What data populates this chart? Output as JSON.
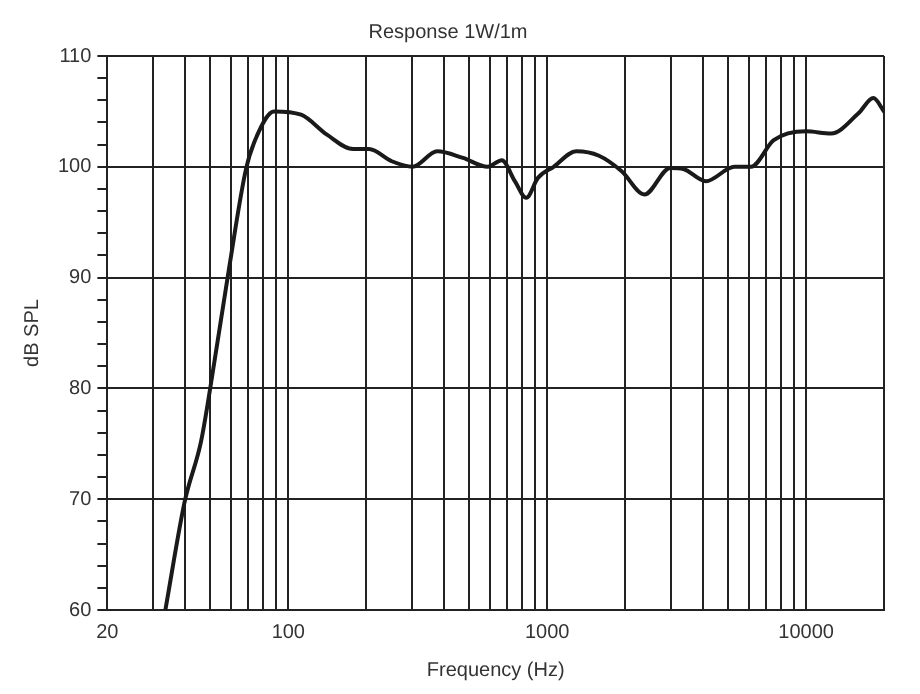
{
  "chart_data": {
    "type": "line",
    "title": "Response 1W/1m",
    "xlabel": "Frequency (Hz)",
    "ylabel": "dB SPL",
    "log": "x",
    "grid": true,
    "legend": false,
    "marker": "none",
    "line_style": "solid",
    "xlim": [
      20,
      20000
    ],
    "ylim": [
      60,
      110
    ],
    "xticks": [
      20,
      {
        "value": 30,
        "label": null
      },
      {
        "value": 40,
        "label": null
      },
      {
        "value": 50,
        "label": null
      },
      {
        "value": 60,
        "label": null
      },
      {
        "value": 70,
        "label": null
      },
      {
        "value": 80,
        "label": null
      },
      {
        "value": 90,
        "label": null
      },
      100,
      {
        "value": 200,
        "label": null
      },
      {
        "value": 300,
        "label": null
      },
      {
        "value": 400,
        "label": null
      },
      {
        "value": 500,
        "label": null
      },
      {
        "value": 600,
        "label": null
      },
      {
        "value": 700,
        "label": null
      },
      {
        "value": 800,
        "label": null
      },
      {
        "value": 900,
        "label": null
      },
      1000,
      {
        "value": 2000,
        "label": null
      },
      {
        "value": 3000,
        "label": null
      },
      {
        "value": 4000,
        "label": null
      },
      {
        "value": 5000,
        "label": null
      },
      {
        "value": 6000,
        "label": null
      },
      {
        "value": 7000,
        "label": null
      },
      {
        "value": 8000,
        "label": null
      },
      {
        "value": 9000,
        "label": null
      },
      10000,
      {
        "value": 20000,
        "label": null
      }
    ],
    "yticks": [
      60,
      {
        "value": 62,
        "label": null
      },
      {
        "value": 64,
        "label": null
      },
      {
        "value": 66,
        "label": null
      },
      {
        "value": 68,
        "label": null
      },
      70,
      {
        "value": 72,
        "label": null
      },
      {
        "value": 74,
        "label": null
      },
      {
        "value": 76,
        "label": null
      },
      {
        "value": 78,
        "label": null
      },
      80,
      {
        "value": 82,
        "label": null
      },
      {
        "value": 84,
        "label": null
      },
      {
        "value": 86,
        "label": null
      },
      {
        "value": 88,
        "label": null
      },
      90,
      {
        "value": 92,
        "label": null
      },
      {
        "value": 94,
        "label": null
      },
      {
        "value": 96,
        "label": null
      },
      {
        "value": 98,
        "label": null
      },
      100,
      {
        "value": 102,
        "label": null
      },
      {
        "value": 104,
        "label": null
      },
      {
        "value": 106,
        "label": null
      },
      {
        "value": 108,
        "label": null
      },
      110
    ],
    "series": [
      {
        "color": "#1a1a1a",
        "x": [
          33.5,
          39.8,
          46,
          50,
          59,
          68.8,
          77,
          88,
          112,
          141,
          178,
          205,
          251,
          302,
          376,
          473,
          589,
          668,
          750,
          830,
          921,
          1059,
          1295,
          1585,
          1940,
          2375,
          2987,
          3360,
          4100,
          5290,
          6130,
          7500,
          10000,
          12500,
          15900,
          18200,
          20000
        ],
        "values": [
          60,
          69.8,
          75.2,
          80.1,
          90.8,
          99.9,
          103.2,
          105,
          104.7,
          102.9,
          101.6,
          101.6,
          100.5,
          100,
          101.4,
          100.8,
          100,
          100.6,
          98.7,
          97.2,
          99,
          100,
          101.4,
          101,
          99.6,
          97.5,
          99.9,
          99.8,
          98.7,
          100,
          100,
          102.4,
          103.2,
          103,
          104.8,
          106.2,
          105
        ]
      }
    ]
  }
}
